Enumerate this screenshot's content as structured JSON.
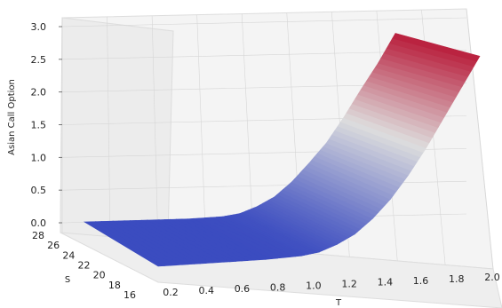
{
  "chart_data": {
    "type": "surface3d",
    "title": "",
    "xlabel": "T",
    "ylabel": "S",
    "zlabel": "Asian Call Option",
    "x_ticks": [
      "0.2",
      "0.4",
      "0.6",
      "0.8",
      "1.0",
      "1.2",
      "1.4",
      "1.6",
      "1.8",
      "2.0"
    ],
    "y_ticks": [
      "16",
      "18",
      "20",
      "22",
      "24",
      "26",
      "28"
    ],
    "z_ticks": [
      "0.0",
      "0.5",
      "1.0",
      "1.5",
      "2.0",
      "2.5",
      "3.0"
    ],
    "xlim": [
      0.2,
      2.0
    ],
    "ylim": [
      15,
      29
    ],
    "zlim": [
      0,
      3
    ],
    "grid": true,
    "colormap": "coolwarm",
    "colormap_stops": [
      "#3b4cc0",
      "#dddddd",
      "#b40426"
    ],
    "surface": {
      "x": [
        0.2,
        0.4,
        0.6,
        0.8,
        1.0,
        1.1,
        1.2,
        1.3,
        1.4,
        1.5,
        1.6,
        1.7,
        1.8,
        1.9,
        2.0
      ],
      "z": [
        0.0,
        0.0,
        0.0,
        0.0,
        0.02,
        0.06,
        0.16,
        0.3,
        0.52,
        0.8,
        1.15,
        1.55,
        2.0,
        2.45,
        2.9
      ],
      "z_at_s_max": [
        0.0,
        0.0,
        0.0,
        0.0,
        0.02,
        0.06,
        0.16,
        0.3,
        0.52,
        0.8,
        1.1,
        1.48,
        1.9,
        2.3,
        2.75
      ],
      "s_range": [
        15.5,
        28.5
      ]
    }
  }
}
